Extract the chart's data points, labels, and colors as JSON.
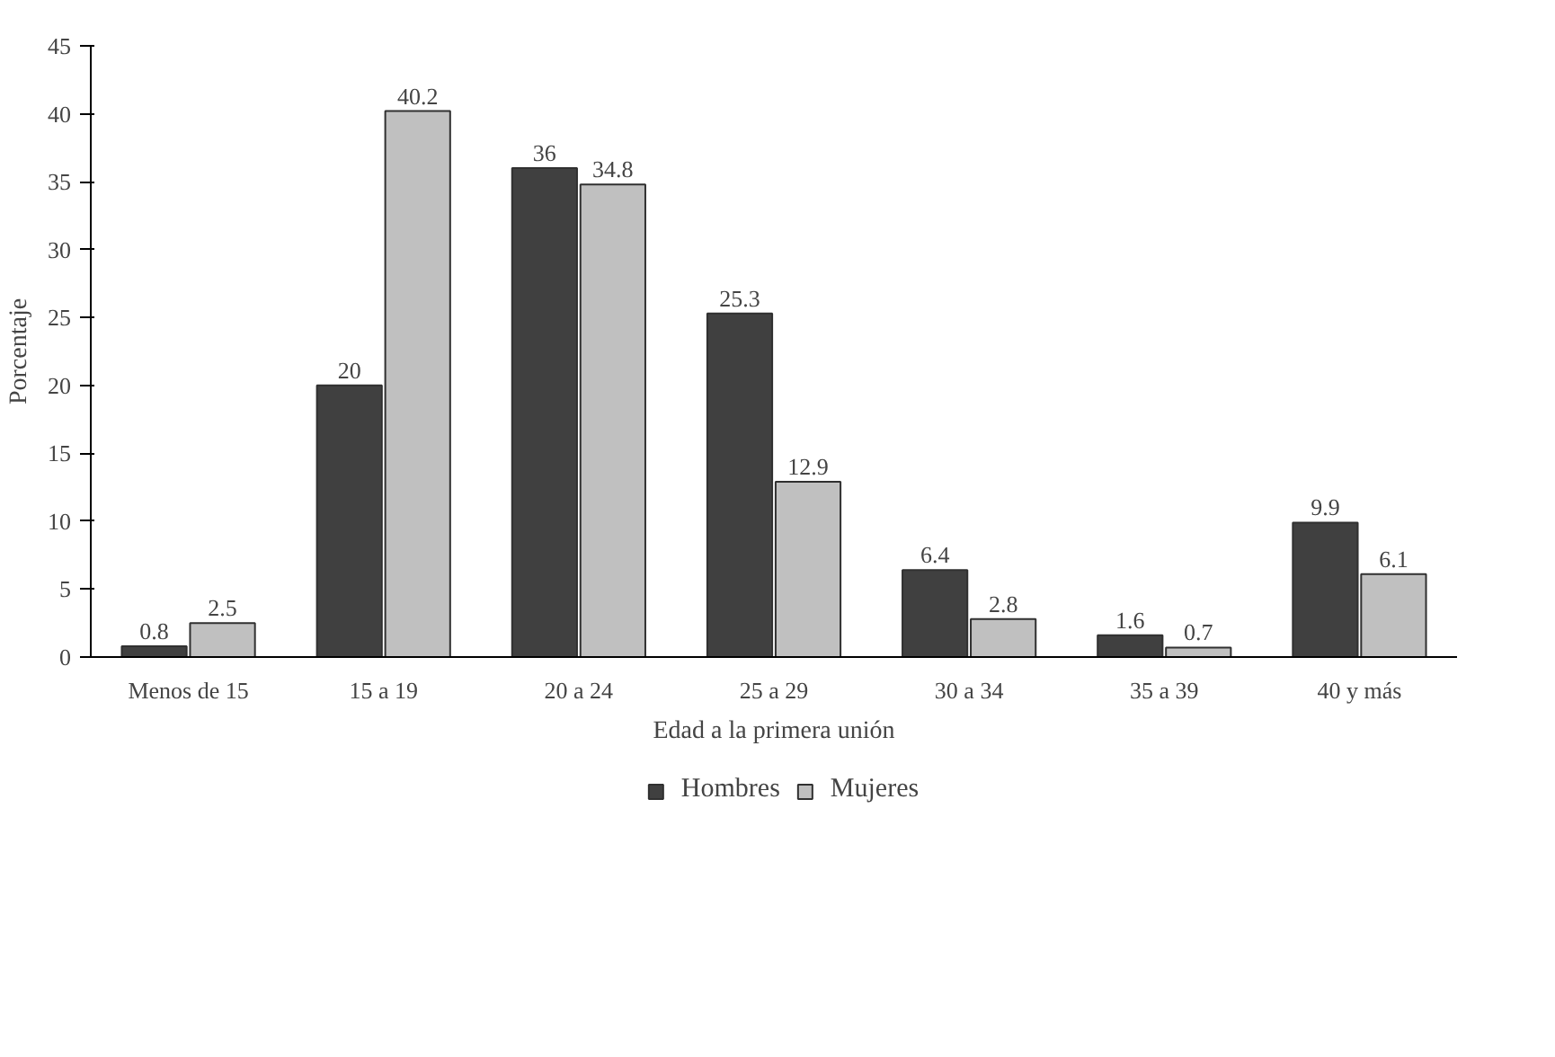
{
  "chart_data": {
    "type": "bar",
    "xlabel": "Edad a la primera unión",
    "ylabel": "Porcentaje",
    "categories": [
      "Menos de 15",
      "15 a 19",
      "20 a 24",
      "25 a 29",
      "30 a 34",
      "35 a 39",
      "40 y más"
    ],
    "series": [
      {
        "name": "Hombres",
        "color": "#404040",
        "values": [
          0.8,
          20,
          36,
          25.3,
          6.4,
          1.6,
          9.9
        ]
      },
      {
        "name": "Mujeres",
        "color": "#c0c0c0",
        "values": [
          2.5,
          40.2,
          34.8,
          12.9,
          2.8,
          0.7,
          6.1
        ]
      }
    ],
    "ylim": [
      0,
      45
    ],
    "yticks": [
      0,
      5,
      10,
      15,
      20,
      25,
      30,
      35,
      40,
      45
    ],
    "grid": false,
    "legend": "bottom",
    "data_labels": true
  }
}
